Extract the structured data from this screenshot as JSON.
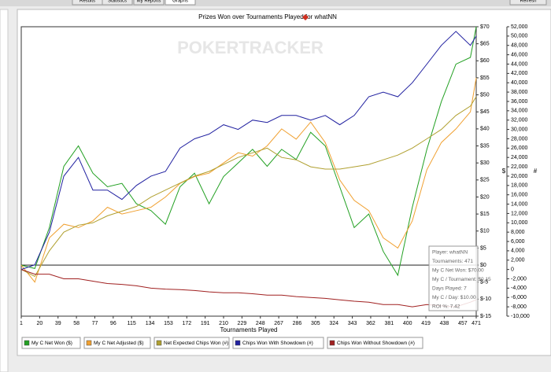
{
  "toolbar": {
    "tabs": [
      "Results",
      "Statistics",
      "My Reports",
      "Graphs"
    ],
    "refresh": "Refresh"
  },
  "watermark": "POKERTRACKER",
  "tooltip": [
    "Player: whatNN",
    "Tournaments: 471",
    "My C Net Won: $70.00",
    "My C / Tournament: $0.15",
    "Days Played: 7",
    "My C / Day: $10.00",
    "ROI %: 7.42"
  ],
  "chart_data": {
    "type": "line",
    "title": "Prizes Won over Tournaments Played for whatNN",
    "x_label": "Tournaments Played",
    "y_label": "$",
    "y2_label": "#",
    "x": [
      1,
      15,
      30,
      45,
      60,
      75,
      90,
      105,
      120,
      135,
      150,
      165,
      180,
      195,
      210,
      225,
      240,
      255,
      270,
      285,
      300,
      315,
      330,
      345,
      360,
      375,
      390,
      405,
      420,
      435,
      450,
      465,
      471
    ],
    "xlim": [
      1,
      471
    ],
    "xticks": [
      1,
      20,
      39,
      58,
      77,
      96,
      115,
      134,
      153,
      172,
      191,
      210,
      229,
      248,
      267,
      286,
      305,
      324,
      343,
      362,
      381,
      400,
      419,
      438,
      457,
      471
    ],
    "ylim": [
      -15,
      70
    ],
    "yticks": [
      {
        "value": -15,
        "label": "$-15"
      },
      {
        "value": -10,
        "label": "$-10"
      },
      {
        "value": -5,
        "label": "$-5"
      },
      {
        "value": 0,
        "label": "$0"
      },
      {
        "value": 5,
        "label": "$5"
      },
      {
        "value": 10,
        "label": "$10"
      },
      {
        "value": 15,
        "label": "$15"
      },
      {
        "value": 20,
        "label": "$20"
      },
      {
        "value": 25,
        "label": "$25"
      },
      {
        "value": 30,
        "label": "$30"
      },
      {
        "value": 35,
        "label": "$35"
      },
      {
        "value": 40,
        "label": "$40"
      },
      {
        "value": 45,
        "label": "$45"
      },
      {
        "value": 50,
        "label": "$50"
      },
      {
        "value": 55,
        "label": "$55"
      },
      {
        "value": 60,
        "label": "$60"
      },
      {
        "value": 65,
        "label": "$65"
      },
      {
        "value": 70,
        "label": "$70"
      }
    ],
    "y2lim": [
      -10000,
      52000
    ],
    "y2ticks": [
      {
        "value": -10000,
        "label": "-10,000"
      },
      {
        "value": -8000,
        "label": "-8,000"
      },
      {
        "value": -6000,
        "label": "-6,000"
      },
      {
        "value": -4000,
        "label": "-4,000"
      },
      {
        "value": -2000,
        "label": "-2,000"
      },
      0,
      {
        "value": 2000,
        "label": "2,000"
      },
      {
        "value": 4000,
        "label": "4,000"
      },
      {
        "value": 6000,
        "label": "6,000"
      },
      {
        "value": 8000,
        "label": "8,000"
      },
      {
        "value": 10000,
        "label": "10,000"
      },
      {
        "value": 12000,
        "label": "12,000"
      },
      {
        "value": 14000,
        "label": "14,000"
      },
      {
        "value": 16000,
        "label": "16,000"
      },
      {
        "value": 18000,
        "label": "18,000"
      },
      {
        "value": 20000,
        "label": "20,000"
      },
      {
        "value": 22000,
        "label": "22,000"
      },
      {
        "value": 24000,
        "label": "24,000"
      },
      {
        "value": 26000,
        "label": "26,000"
      },
      {
        "value": 28000,
        "label": "28,000"
      },
      {
        "value": 30000,
        "label": "30,000"
      },
      {
        "value": 32000,
        "label": "32,000"
      },
      {
        "value": 34000,
        "label": "34,000"
      },
      {
        "value": 36000,
        "label": "36,000"
      },
      {
        "value": 38000,
        "label": "38,000"
      },
      {
        "value": 40000,
        "label": "40,000"
      },
      {
        "value": 42000,
        "label": "42,000"
      },
      {
        "value": 44000,
        "label": "44,000"
      },
      {
        "value": 46000,
        "label": "46,000"
      },
      {
        "value": 48000,
        "label": "48,000"
      },
      {
        "value": 50000,
        "label": "50,000"
      },
      {
        "value": 52000,
        "label": "52,000"
      }
    ],
    "series": [
      {
        "name": "My C Net Won ($)",
        "color": "#22a022",
        "values": [
          0,
          -1,
          11,
          29,
          35,
          27,
          23,
          24,
          18,
          16,
          12,
          23,
          27,
          18,
          26,
          30,
          34,
          29,
          34,
          31,
          39,
          35,
          23,
          11,
          15,
          4,
          -3,
          17,
          34,
          48,
          59,
          61,
          70
        ]
      },
      {
        "name": "My C Net Adjusted ($)",
        "color": "#f0a030",
        "values": [
          0,
          -5,
          8,
          12,
          11,
          13,
          17,
          15,
          16,
          17,
          20,
          24,
          26,
          27,
          30,
          33,
          32,
          35,
          40,
          37,
          42,
          36,
          25,
          19,
          16,
          8,
          5,
          13,
          28,
          36,
          40,
          45,
          55
        ]
      },
      {
        "name": "Net Expected Chips Won (#)",
        "color": "#b0a030",
        "axis": "y2",
        "values": [
          0,
          -1500,
          4000,
          8000,
          9500,
          10000,
          11500,
          12500,
          13500,
          15500,
          17000,
          18500,
          20000,
          21000,
          22500,
          24000,
          25000,
          26000,
          24000,
          23500,
          22000,
          21500,
          21500,
          22000,
          22500,
          23500,
          24500,
          26000,
          28000,
          30000,
          33000,
          35000,
          37000
        ]
      },
      {
        "name": "Chips Won With Showdown (#)",
        "color": "#2020a0",
        "axis": "y2",
        "values": [
          0,
          1000,
          8000,
          20000,
          24000,
          17000,
          17000,
          15000,
          18000,
          20000,
          21000,
          26000,
          28000,
          29000,
          31000,
          30000,
          32000,
          31500,
          33000,
          33000,
          32000,
          33000,
          31000,
          33000,
          37000,
          38000,
          37000,
          40000,
          44000,
          48000,
          51000,
          48000,
          50000
        ]
      },
      {
        "name": "Chips Won Without Showdown (#)",
        "color": "#a02020",
        "axis": "y2",
        "values": [
          0,
          -1000,
          -1000,
          -2000,
          -2000,
          -2500,
          -3000,
          -3200,
          -3500,
          -4000,
          -4200,
          -4300,
          -4500,
          -4800,
          -5000,
          -5000,
          -5200,
          -5500,
          -5500,
          -5800,
          -6000,
          -6200,
          -6500,
          -6800,
          -7000,
          -7500,
          -7500,
          -8000,
          -7500,
          -7800,
          -8000,
          -7000,
          -6500
        ]
      }
    ]
  }
}
